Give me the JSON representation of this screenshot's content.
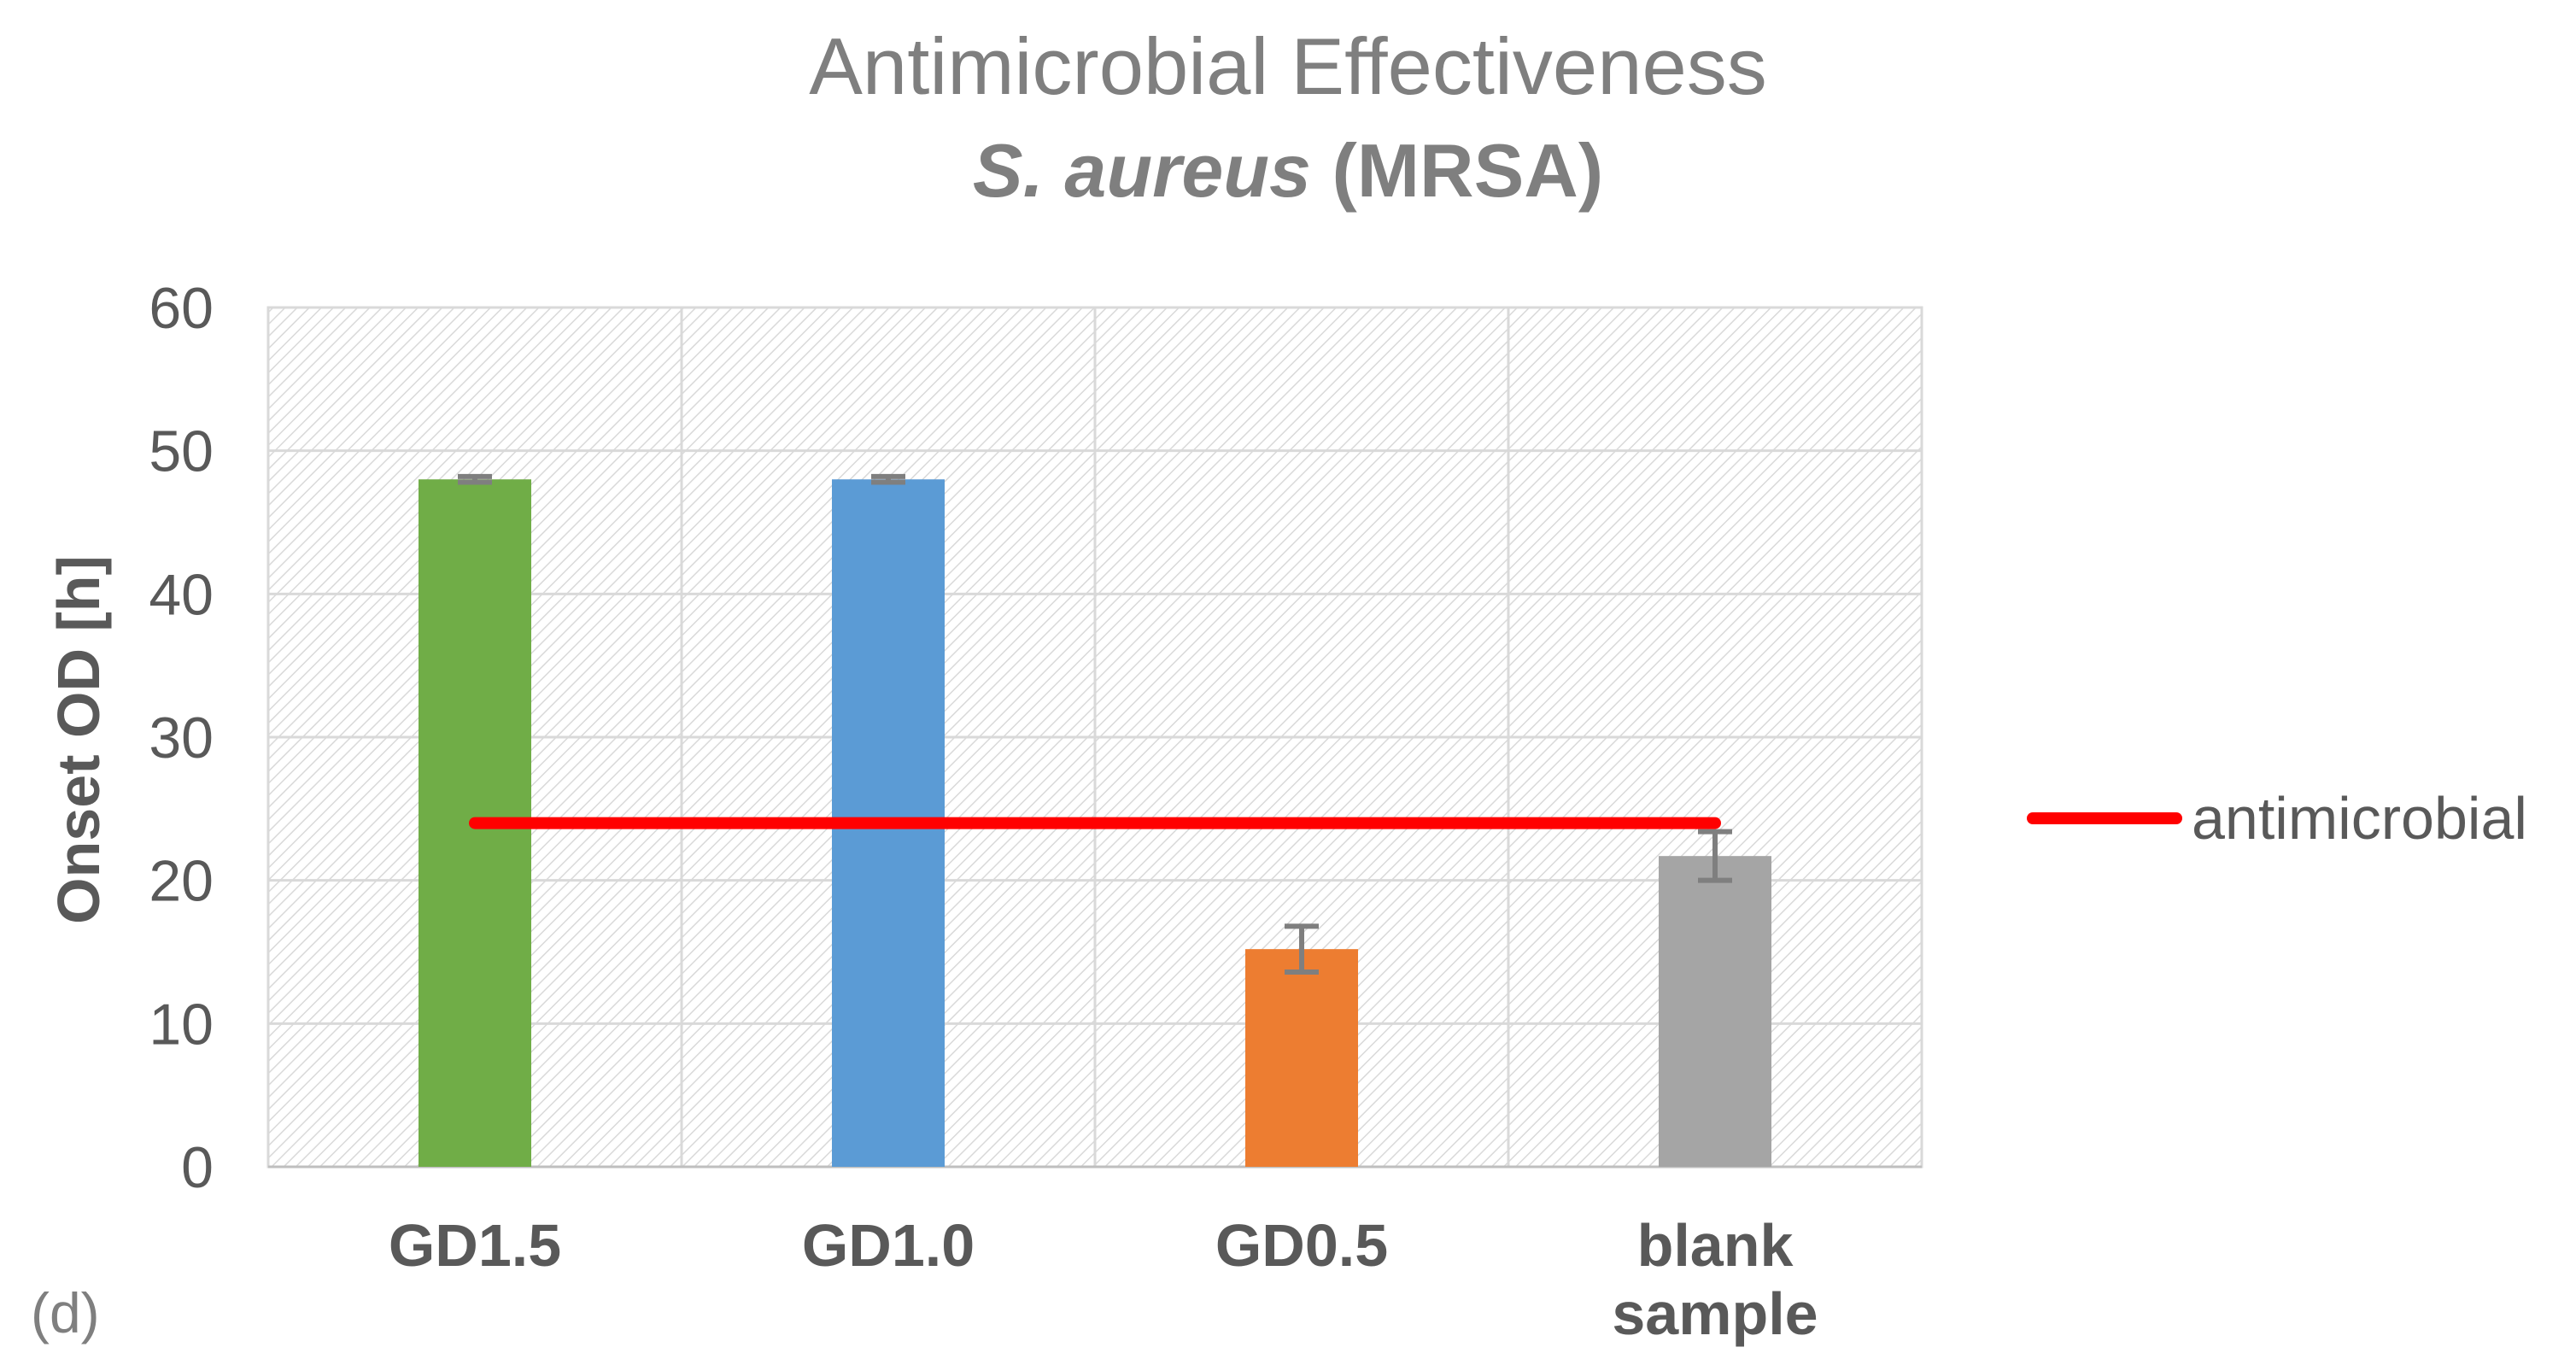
{
  "chart_data": {
    "type": "bar",
    "title_line1": "Antimicrobial Effectiveness",
    "title_line2_italic": "S. aureus",
    "title_line2_plain": " (MRSA)",
    "ylabel": "Onset OD [h]",
    "xlabel": "",
    "ylim": [
      0,
      60
    ],
    "yticks": [
      0,
      10,
      20,
      30,
      40,
      50,
      60
    ],
    "categories": [
      {
        "lines": [
          "GD1.5"
        ]
      },
      {
        "lines": [
          "GD1.0"
        ]
      },
      {
        "lines": [
          "GD0.5"
        ]
      },
      {
        "lines": [
          "blank",
          "sample"
        ]
      }
    ],
    "values": [
      48,
      48,
      15.2,
      21.7
    ],
    "errors": [
      0.2,
      0.2,
      1.6,
      1.7
    ],
    "bar_colors": [
      "#70ad47",
      "#5b9bd5",
      "#ed7d31",
      "#a5a5a5"
    ],
    "error_color": "#7f7f7f",
    "threshold": {
      "name": "antimicrobial",
      "value": 24,
      "color": "#ff0000",
      "from_category": 0,
      "to_category": 3
    },
    "legend_position": "right",
    "grid": true,
    "panel_label": "(d)"
  }
}
